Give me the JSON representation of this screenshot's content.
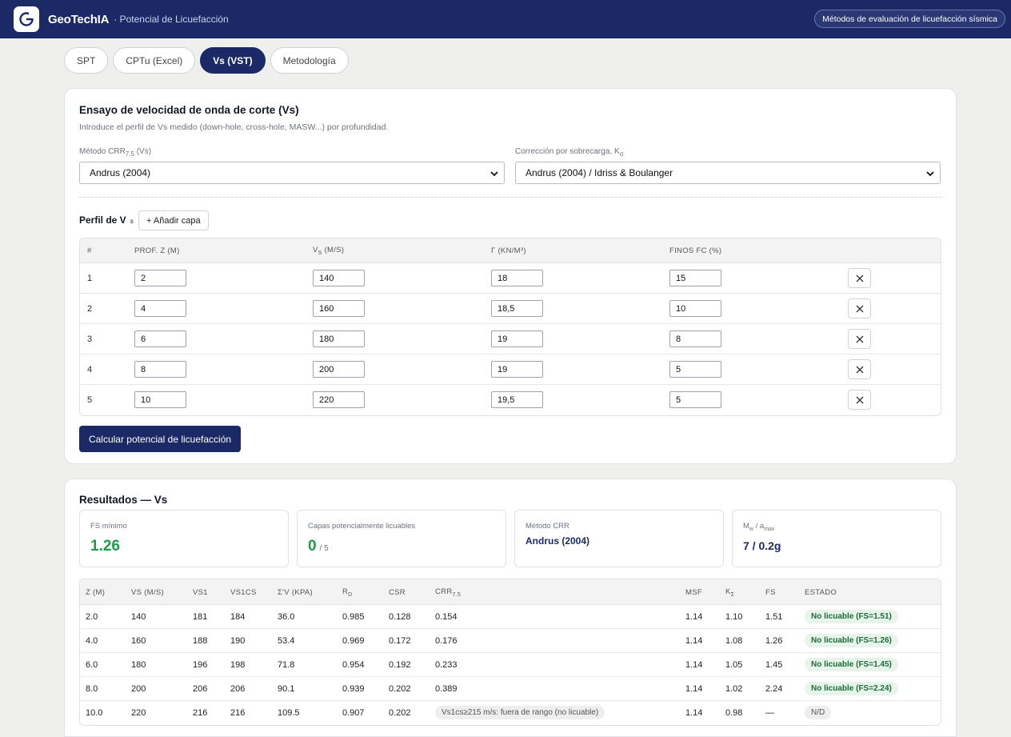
{
  "header": {
    "brand": "GeoTechIA",
    "subtitle": "· Potencial de Licuefacción",
    "methods_button": "Métodos de evaluación de licuefacción sísmica"
  },
  "tabs": [
    {
      "label": "SPT",
      "active": false
    },
    {
      "label": "CPTu (Excel)",
      "active": false
    },
    {
      "label": "Vs (VST)",
      "active": true
    },
    {
      "label": "Metodología",
      "active": false
    }
  ],
  "input_card": {
    "title": "Ensayo de velocidad de onda de corte (Vs)",
    "description": "Introduce el perfil de Vs medido (down-hole, cross-hole, MASW...) por profundidad.",
    "crr_method": {
      "label_main": "Método CRR",
      "label_sub": "7.5",
      "label_suffix": " (Vs)",
      "value": "Andrus (2004)"
    },
    "k_sigma": {
      "label_main": "Corrección por sobrecarga, K",
      "label_sub": "σ",
      "value": "Andrus (2004) / Idriss & Boulanger"
    },
    "profile_title": "Perfil de V",
    "profile_sub": "s",
    "add_layer": "+ Añadir capa",
    "columns": {
      "num": "#",
      "depth": "PROF. Z (M)",
      "vs_main": "V",
      "vs_sub": "S",
      "vs_unit": " (M/S)",
      "gamma": "Γ (KN/M³)",
      "fines": "FINOS FC (%)"
    },
    "rows": [
      {
        "num": "1",
        "z": "2",
        "vs": "140",
        "gamma": "18",
        "fc": "15"
      },
      {
        "num": "2",
        "z": "4",
        "vs": "160",
        "gamma": "18,5",
        "fc": "10"
      },
      {
        "num": "3",
        "z": "6",
        "vs": "180",
        "gamma": "19",
        "fc": "8"
      },
      {
        "num": "4",
        "z": "8",
        "vs": "200",
        "gamma": "19",
        "fc": "5"
      },
      {
        "num": "5",
        "z": "10",
        "vs": "220",
        "gamma": "19,5",
        "fc": "5"
      }
    ],
    "calc_button": "Calcular potencial de licuefacción"
  },
  "results": {
    "title": "Resultados — Vs",
    "fs_min": {
      "label": "FS mínimo",
      "value": "1.26",
      "color": "#1f9a4a"
    },
    "liquefiable": {
      "label": "Capas potencialmente licuables",
      "value": "0",
      "total": "/ 5",
      "color": "#1f9a4a"
    },
    "crr_method": {
      "label": "Método CRR",
      "value": "Andrus (2004)"
    },
    "mw_amax": {
      "label_a": "M",
      "sub_a": "w",
      "label_b": " / a",
      "sub_b": "max",
      "value": "7 / 0.2g"
    },
    "columns": {
      "z": "Z (M)",
      "vs": "VS (M/S)",
      "vs1": "VS1",
      "vs1cs": "VS1CS",
      "sigma": "Σ'V (KPA)",
      "rd_main": "R",
      "rd_sub": "D",
      "csr": "CSR",
      "crr_main": "CRR",
      "crr_sub": "7.5",
      "msf": "MSF",
      "k_main": "K",
      "k_sub": "Σ",
      "fs": "FS",
      "estado": "ESTADO"
    },
    "rows": [
      {
        "z": "2.0",
        "vs": "140",
        "vs1": "181",
        "vs1cs": "184",
        "sigma": "36.0",
        "rd": "0.985",
        "csr": "0.128",
        "crr": "0.154",
        "msf": "1.14",
        "k": "1.10",
        "fs": "1.51",
        "estado": "No licuable (FS=1.51)"
      },
      {
        "z": "4.0",
        "vs": "160",
        "vs1": "188",
        "vs1cs": "190",
        "sigma": "53.4",
        "rd": "0.969",
        "csr": "0.172",
        "crr": "0.176",
        "msf": "1.14",
        "k": "1.08",
        "fs": "1.26",
        "estado": "No licuable (FS=1.26)"
      },
      {
        "z": "6.0",
        "vs": "180",
        "vs1": "196",
        "vs1cs": "198",
        "sigma": "71.8",
        "rd": "0.954",
        "csr": "0.192",
        "crr": "0.233",
        "msf": "1.14",
        "k": "1.05",
        "fs": "1.45",
        "estado": "No licuable (FS=1.45)"
      },
      {
        "z": "8.0",
        "vs": "200",
        "vs1": "206",
        "vs1cs": "206",
        "sigma": "90.1",
        "rd": "0.939",
        "csr": "0.202",
        "crr": "0.389",
        "msf": "1.14",
        "k": "1.02",
        "fs": "2.24",
        "estado": "No licuable (FS=2.24)"
      },
      {
        "z": "10.0",
        "vs": "220",
        "vs1": "216",
        "vs1cs": "216",
        "sigma": "109.5",
        "rd": "0.907",
        "csr": "0.202",
        "crr": "Vs1cs≥215 m/s: fuera de rango (no licuable)",
        "msf": "1.14",
        "k": "0.98",
        "fs": "—",
        "estado": "N/D"
      }
    ]
  }
}
